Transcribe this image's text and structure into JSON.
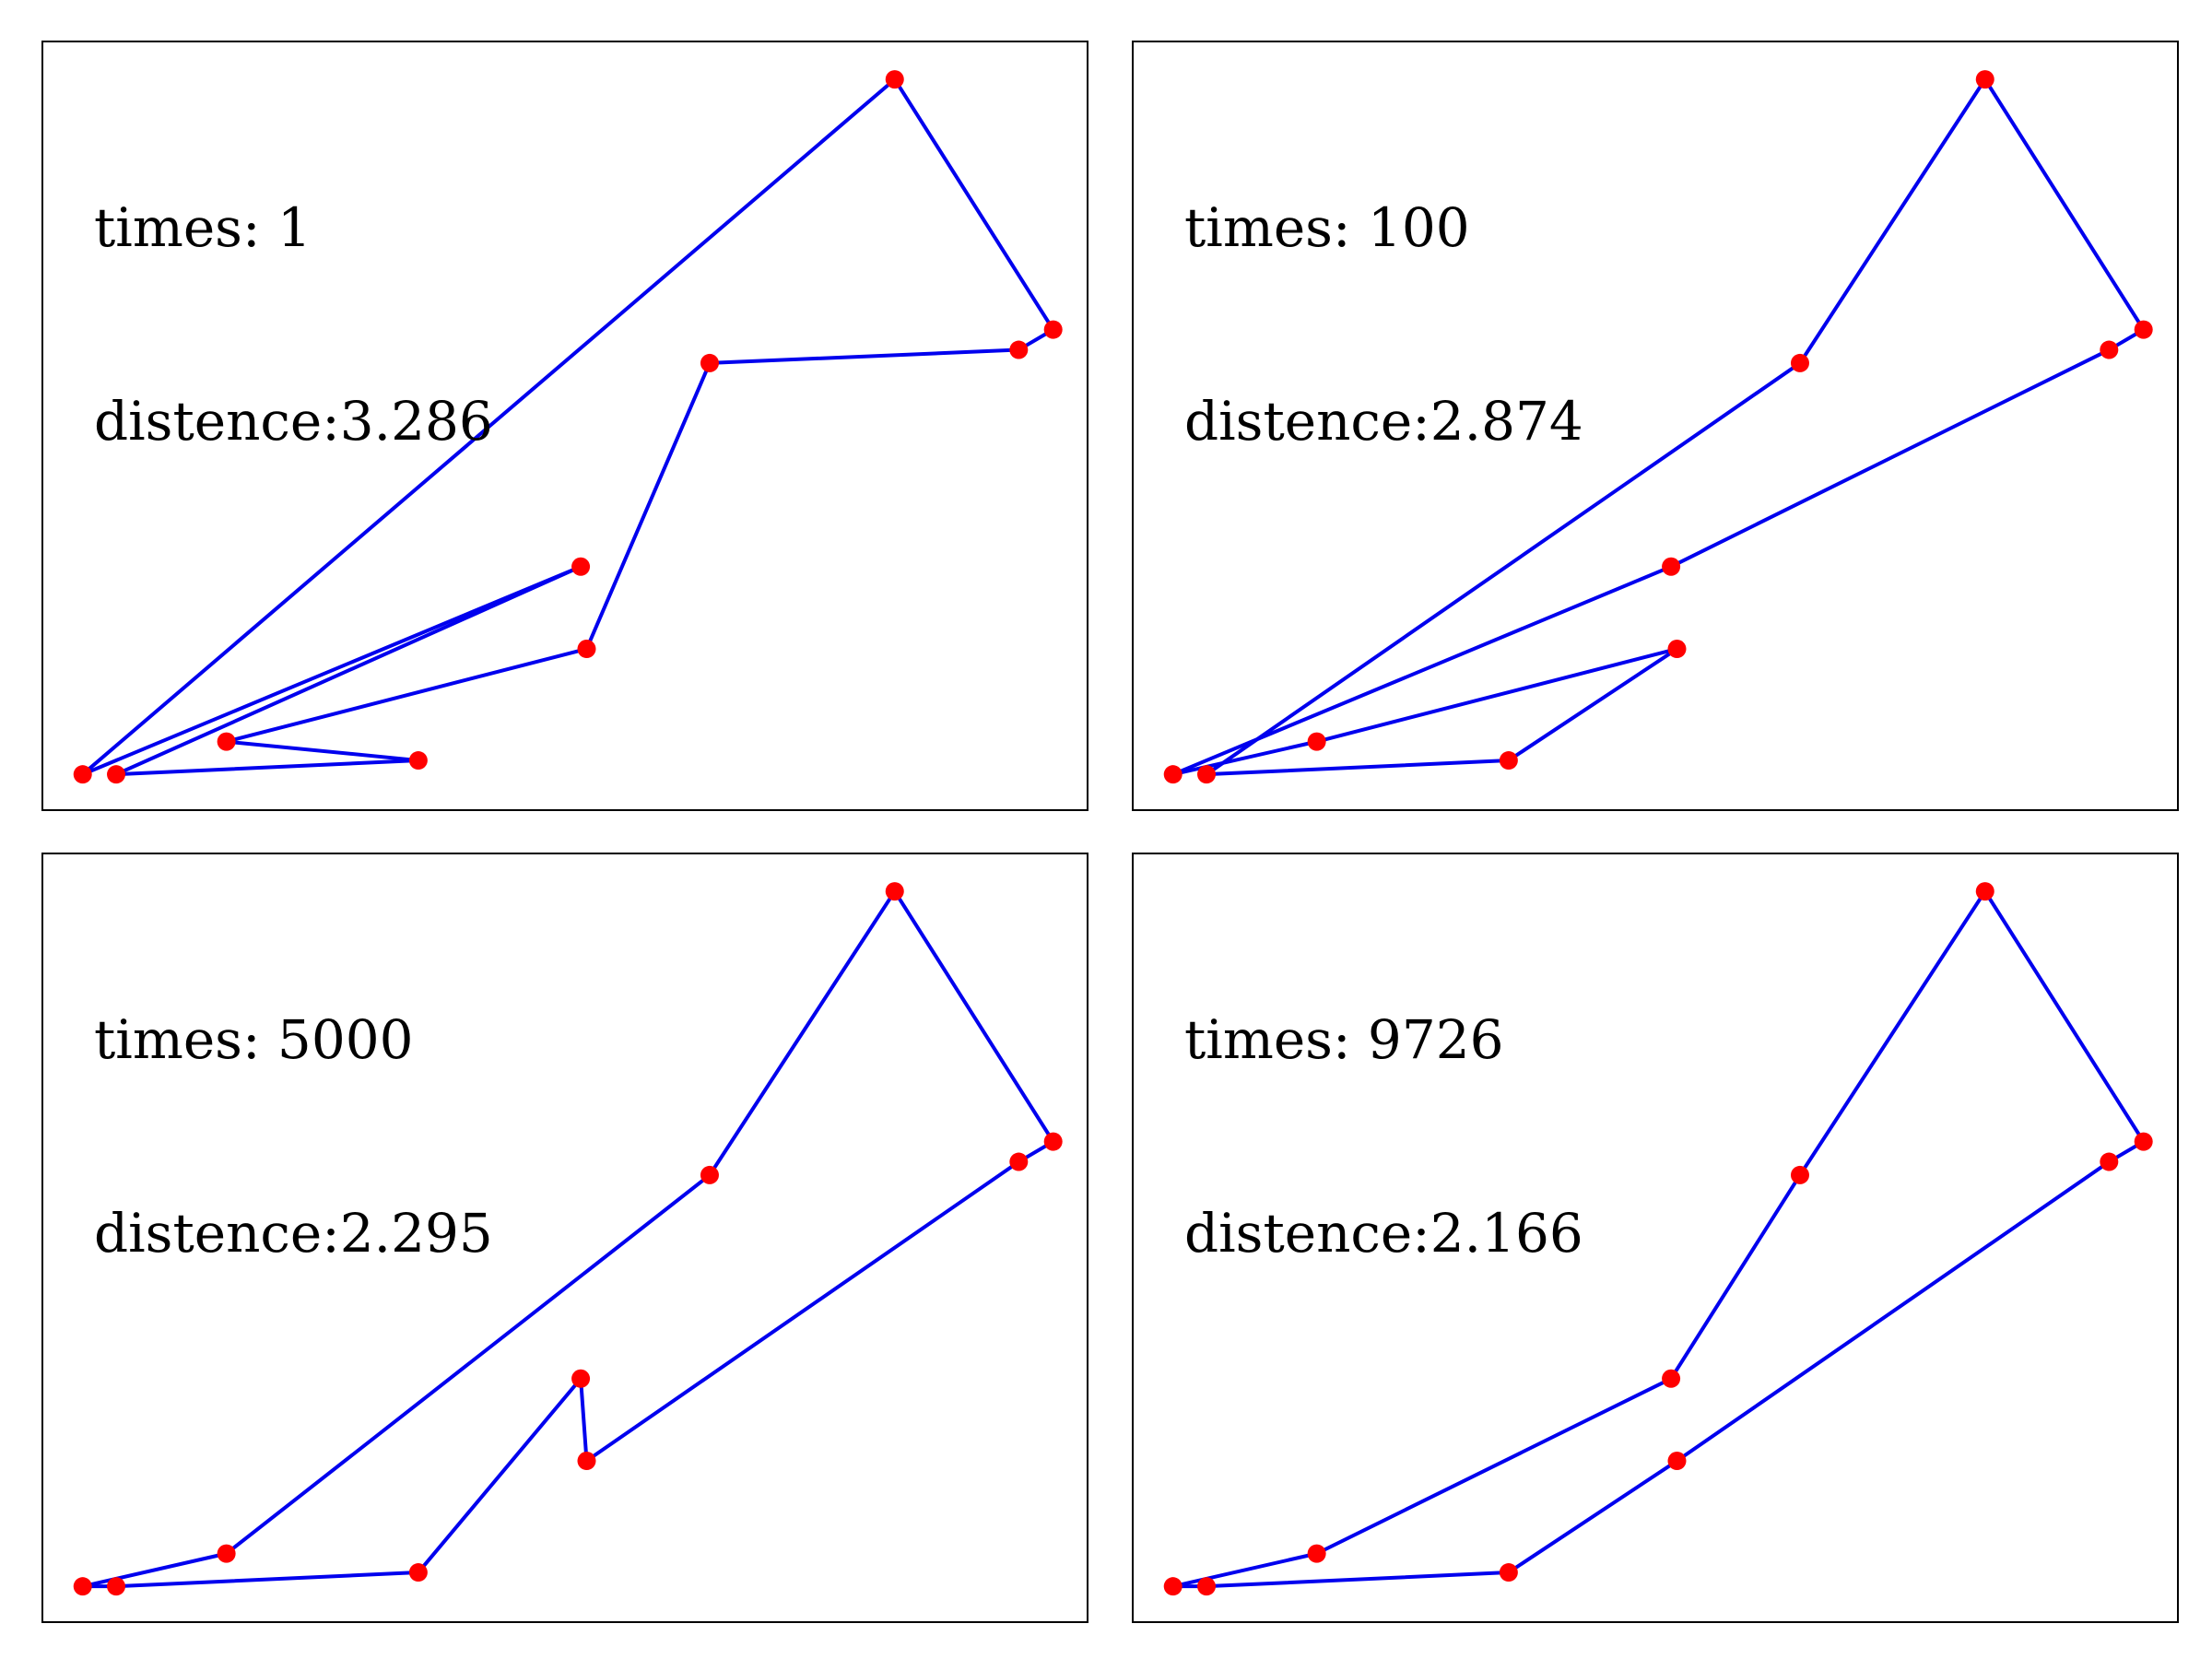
{
  "figure": {
    "background": "#ffffff"
  },
  "style": {
    "line_color": "#0000ee",
    "point_color": "#ff0000"
  },
  "points": [
    {
      "id": "A",
      "x": 0.0,
      "y": 0.0
    },
    {
      "id": "B",
      "x": 0.034,
      "y": 0.0
    },
    {
      "id": "C",
      "x": 0.146,
      "y": 0.047
    },
    {
      "id": "D",
      "x": 0.341,
      "y": 0.02
    },
    {
      "id": "E",
      "x": 0.506,
      "y": 0.298
    },
    {
      "id": "F",
      "x": 0.512,
      "y": 0.18
    },
    {
      "id": "G",
      "x": 0.637,
      "y": 0.59
    },
    {
      "id": "H",
      "x": 0.825,
      "y": 0.997
    },
    {
      "id": "I",
      "x": 0.951,
      "y": 0.609
    },
    {
      "id": "J",
      "x": 0.986,
      "y": 0.638
    }
  ],
  "chart_data": [
    {
      "type": "line",
      "title": "",
      "annotation": {
        "times_label": "times: 1",
        "distance_label": "distence:3.286"
      },
      "times": 1,
      "distance": 3.286,
      "route": [
        "A",
        "H",
        "J",
        "I",
        "G",
        "F",
        "C",
        "D",
        "B",
        "E",
        "A"
      ],
      "xlim": [
        -0.04,
        1.02
      ],
      "ylim": [
        -0.05,
        1.05
      ],
      "grid": false
    },
    {
      "type": "line",
      "title": "",
      "annotation": {
        "times_label": "times: 100",
        "distance_label": "distence:2.874"
      },
      "times": 100,
      "distance": 2.874,
      "route": [
        "A",
        "E",
        "I",
        "J",
        "H",
        "G",
        "B",
        "D",
        "F",
        "C",
        "A"
      ],
      "xlim": [
        -0.04,
        1.02
      ],
      "ylim": [
        -0.05,
        1.05
      ],
      "grid": false
    },
    {
      "type": "line",
      "title": "",
      "annotation": {
        "times_label": "times: 5000",
        "distance_label": "distence:2.295"
      },
      "times": 5000,
      "distance": 2.295,
      "route": [
        "A",
        "B",
        "D",
        "E",
        "F",
        "I",
        "J",
        "H",
        "G",
        "C",
        "A"
      ],
      "xlim": [
        -0.04,
        1.02
      ],
      "ylim": [
        -0.05,
        1.05
      ],
      "grid": false
    },
    {
      "type": "line",
      "title": "",
      "annotation": {
        "times_label": "times: 9726",
        "distance_label": "distence:2.166"
      },
      "times": 9726,
      "distance": 2.166,
      "route": [
        "A",
        "B",
        "D",
        "F",
        "I",
        "J",
        "H",
        "G",
        "E",
        "C",
        "A"
      ],
      "xlim": [
        -0.04,
        1.02
      ],
      "ylim": [
        -0.05,
        1.05
      ],
      "grid": false
    }
  ]
}
